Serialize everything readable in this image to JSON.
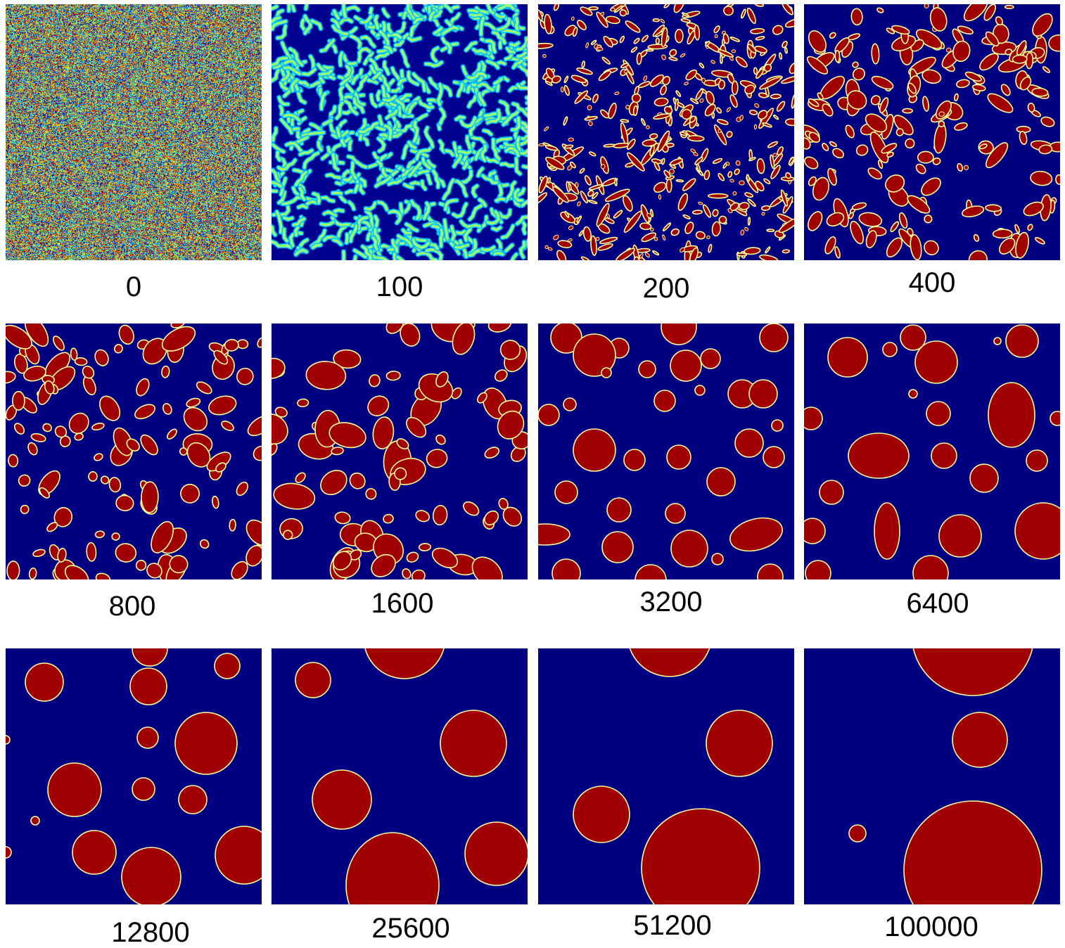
{
  "colors": {
    "background": "#000080",
    "droplet": "#a00000",
    "droplet_rim": "#ffff99",
    "droplet_glow": "#00ccff"
  },
  "panels": [
    {
      "label": "0",
      "kind": "noise"
    },
    {
      "label": "100",
      "kind": "worms"
    },
    {
      "label": "200",
      "kind": "droplets"
    },
    {
      "label": "400",
      "kind": "droplets"
    },
    {
      "label": "800",
      "kind": "droplets"
    },
    {
      "label": "1600",
      "kind": "droplets"
    },
    {
      "label": "3200",
      "kind": "droplets"
    },
    {
      "label": "6400",
      "kind": "droplets"
    },
    {
      "label": "12800",
      "kind": "droplets"
    },
    {
      "label": "25600",
      "kind": "droplets"
    },
    {
      "label": "51200",
      "kind": "droplets"
    },
    {
      "label": "100000",
      "kind": "droplets"
    }
  ]
}
